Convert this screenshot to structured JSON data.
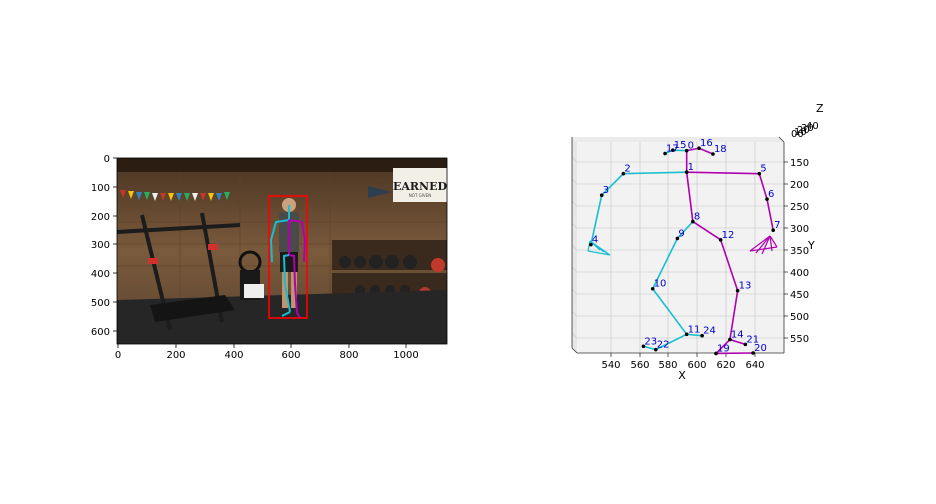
{
  "left_panel": {
    "x_ticks": [
      "0",
      "200",
      "400",
      "600",
      "800",
      "1000"
    ],
    "y_ticks": [
      "0",
      "100",
      "200",
      "300",
      "400",
      "500",
      "600"
    ],
    "sign_text": "EARNED",
    "sign_subtext": "NOT GIVEN",
    "bbox_color": "#ff0000"
  },
  "right_panel": {
    "x_label": "X",
    "y_label": "Y",
    "z_label": "Z",
    "x_ticks": [
      "540",
      "560",
      "580",
      "600",
      "620",
      "640"
    ],
    "y_ticks": [
      "150",
      "200",
      "250",
      "300",
      "350",
      "400",
      "450",
      "500",
      "550"
    ],
    "z_ticks": [
      "40",
      "30",
      "20",
      "10",
      "00"
    ],
    "colors": {
      "left_limb": "#17becf",
      "right_limb": "#b000b0",
      "joint": "#000000",
      "label": "#0000cc"
    }
  },
  "chart_data": {
    "type": "scatter",
    "x_range": [
      522,
      656
    ],
    "y_range": [
      570,
      130
    ],
    "joints": [
      {
        "id": "0",
        "x": 593,
        "y": 148
      },
      {
        "id": "1",
        "x": 593,
        "y": 193
      },
      {
        "id": "2",
        "x": 552,
        "y": 196
      },
      {
        "id": "3",
        "x": 538,
        "y": 241
      },
      {
        "id": "4",
        "x": 531,
        "y": 344
      },
      {
        "id": "5",
        "x": 640,
        "y": 196
      },
      {
        "id": "6",
        "x": 645,
        "y": 249
      },
      {
        "id": "7",
        "x": 649,
        "y": 314
      },
      {
        "id": "8",
        "x": 597,
        "y": 296
      },
      {
        "id": "9",
        "x": 587,
        "y": 331
      },
      {
        "id": "10",
        "x": 571,
        "y": 436
      },
      {
        "id": "11",
        "x": 593,
        "y": 531
      },
      {
        "id": "12",
        "x": 615,
        "y": 334
      },
      {
        "id": "13",
        "x": 626,
        "y": 440
      },
      {
        "id": "14",
        "x": 621,
        "y": 542
      },
      {
        "id": "15",
        "x": 584,
        "y": 147
      },
      {
        "id": "16",
        "x": 601,
        "y": 143
      },
      {
        "id": "17",
        "x": 579,
        "y": 154
      },
      {
        "id": "18",
        "x": 610,
        "y": 155
      },
      {
        "id": "19",
        "x": 612,
        "y": 571
      },
      {
        "id": "20",
        "x": 636,
        "y": 570
      },
      {
        "id": "21",
        "x": 631,
        "y": 552
      },
      {
        "id": "22",
        "x": 573,
        "y": 563
      },
      {
        "id": "23",
        "x": 565,
        "y": 556
      },
      {
        "id": "24",
        "x": 603,
        "y": 534
      }
    ],
    "bones": [
      {
        "from": "0",
        "to": "1",
        "side": "right"
      },
      {
        "from": "1",
        "to": "2",
        "side": "left"
      },
      {
        "from": "2",
        "to": "3",
        "side": "left"
      },
      {
        "from": "3",
        "to": "4",
        "side": "left"
      },
      {
        "from": "1",
        "to": "5",
        "side": "right"
      },
      {
        "from": "5",
        "to": "6",
        "side": "right"
      },
      {
        "from": "6",
        "to": "7",
        "side": "right"
      },
      {
        "from": "1",
        "to": "8",
        "side": "right"
      },
      {
        "from": "8",
        "to": "9",
        "side": "left"
      },
      {
        "from": "9",
        "to": "10",
        "side": "left"
      },
      {
        "from": "10",
        "to": "11",
        "side": "left"
      },
      {
        "from": "8",
        "to": "12",
        "side": "right"
      },
      {
        "from": "12",
        "to": "13",
        "side": "right"
      },
      {
        "from": "13",
        "to": "14",
        "side": "right"
      },
      {
        "from": "0",
        "to": "15",
        "side": "left"
      },
      {
        "from": "15",
        "to": "17",
        "side": "left"
      },
      {
        "from": "0",
        "to": "16",
        "side": "right"
      },
      {
        "from": "16",
        "to": "18",
        "side": "right"
      },
      {
        "from": "11",
        "to": "22",
        "side": "left"
      },
      {
        "from": "22",
        "to": "23",
        "side": "left"
      },
      {
        "from": "11",
        "to": "24",
        "side": "left"
      },
      {
        "from": "14",
        "to": "19",
        "side": "right"
      },
      {
        "from": "19",
        "to": "20",
        "side": "right"
      },
      {
        "from": "14",
        "to": "21",
        "side": "right"
      }
    ]
  }
}
